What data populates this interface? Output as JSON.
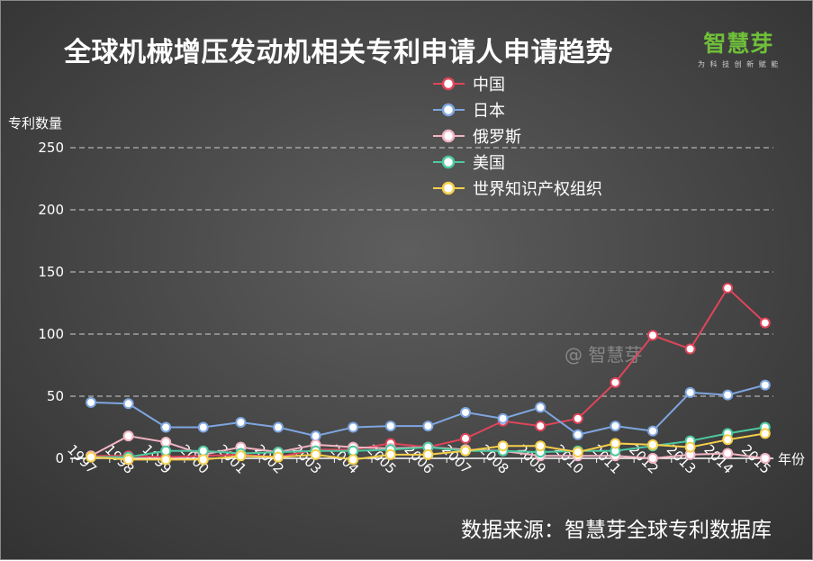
{
  "chart": {
    "title": "全球机械增压发动机相关专利申请人申请趋势",
    "source": "数据来源：智慧芽全球专利数据库",
    "logo_main": "智慧芽",
    "logo_sub": "为 科 技 创 新 赋 能",
    "watermark": "@ 智慧芽"
  },
  "chart_data": {
    "type": "line",
    "title": "全球机械增压发动机相关专利申请人申请趋势",
    "xlabel": "年份",
    "ylabel": "专利数量",
    "ylim": [
      0,
      250
    ],
    "yticks": [
      0,
      50,
      100,
      150,
      200,
      250
    ],
    "grid": "dashed-horizontal",
    "legend_position": "top-center",
    "x": [
      "1997",
      "1998",
      "1999",
      "2000",
      "2001",
      "2002",
      "2003",
      "2004",
      "2005",
      "2006",
      "2007",
      "2008",
      "2009",
      "2010",
      "2011",
      "2012",
      "2013",
      "2014",
      "2015"
    ],
    "series": [
      {
        "name": "中国",
        "color": "#e0455a",
        "values": [
          2,
          2,
          1,
          2,
          3,
          1,
          7,
          7,
          12,
          9,
          16,
          30,
          26,
          32,
          61,
          99,
          88,
          137,
          109
        ]
      },
      {
        "name": "日本",
        "color": "#7ea6e0",
        "values": [
          45,
          44,
          25,
          25,
          29,
          25,
          18,
          25,
          26,
          26,
          37,
          32,
          41,
          19,
          26,
          22,
          53,
          51,
          59
        ]
      },
      {
        "name": "俄罗斯",
        "color": "#f2b5c3",
        "values": [
          2,
          18,
          13,
          3,
          9,
          5,
          11,
          9,
          8,
          9,
          7,
          6,
          2,
          2,
          2,
          0,
          3,
          4,
          0
        ]
      },
      {
        "name": "美国",
        "color": "#4dc9a0",
        "values": [
          1,
          1,
          6,
          6,
          4,
          5,
          6,
          6,
          7,
          9,
          6,
          6,
          5,
          6,
          6,
          10,
          14,
          20,
          25
        ]
      },
      {
        "name": "世界知识产权组织",
        "color": "#f5cf4a",
        "values": [
          1,
          -1,
          -1,
          -1,
          2,
          1,
          3,
          -1,
          3,
          3,
          6,
          10,
          10,
          5,
          12,
          11,
          9,
          15,
          20
        ]
      }
    ]
  }
}
